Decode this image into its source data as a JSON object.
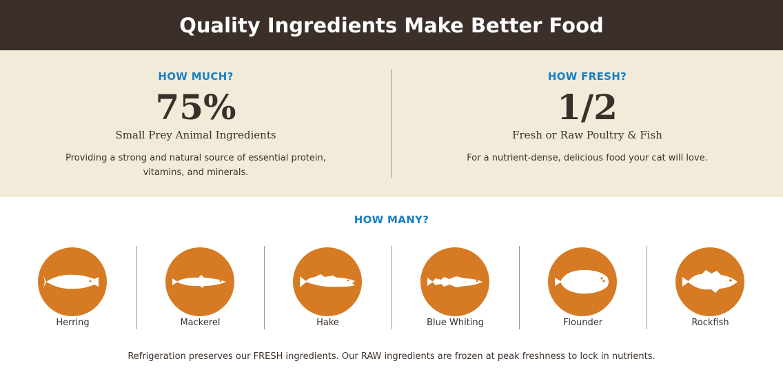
{
  "header": {
    "title": "Quality Ingredients Make Better Food"
  },
  "stats": {
    "left": {
      "kicker": "HOW MUCH?",
      "value": "75%",
      "label": "Small Prey Animal Ingredients",
      "description": "Providing a strong and natural source of essential protein, vitamins, and minerals."
    },
    "right": {
      "kicker": "HOW FRESH?",
      "value": "1/2",
      "label": "Fresh or Raw Poultry & Fish",
      "description": "For a nutrient-dense, delicious food your cat will love."
    }
  },
  "how_many": {
    "kicker": "HOW MANY?",
    "fish": [
      {
        "name": "Herring",
        "icon": "herring-icon"
      },
      {
        "name": "Mackerel",
        "icon": "mackerel-icon"
      },
      {
        "name": "Hake",
        "icon": "hake-icon"
      },
      {
        "name": "Blue Whiting",
        "icon": "blue-whiting-icon"
      },
      {
        "name": "Flounder",
        "icon": "flounder-icon"
      },
      {
        "name": "Rockfish",
        "icon": "rockfish-icon"
      }
    ]
  },
  "footnote": "Refrigeration preserves our FRESH ingredients. Our RAW ingredients are frozen at peak freshness to lock in nutrients.",
  "colors": {
    "header_bg": "#3b2f2a",
    "stats_bg": "#f1ecd9",
    "accent_blue": "#1a7fc4",
    "fish_circle": "#d67b23",
    "text_dark": "#3a302a"
  }
}
